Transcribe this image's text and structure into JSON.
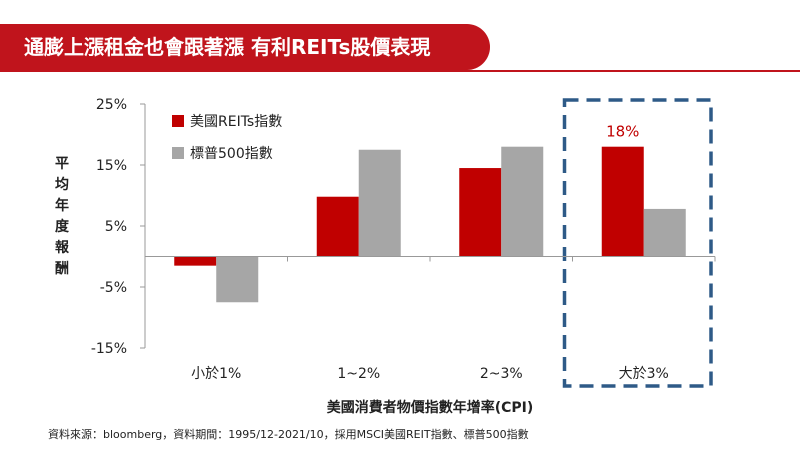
{
  "header": {
    "title": "通膨上漲租金也會跟著漲 有利REITs股價表現"
  },
  "footer": {
    "source": "資料來源：bloomberg，資料期間：1995/12-2021/10，採用MSCI美國REIT指數、標普500指數"
  },
  "colors": {
    "accent": "#c0141c",
    "reits": "#c00000",
    "sp500": "#a6a6a6",
    "highlight_box": "#2e5a87"
  },
  "chart_data": {
    "type": "bar",
    "xlabel": "美國消費者物價指數年增率(CPI)",
    "ylabel": "平均年度報酬",
    "categories": [
      "小於1%",
      "1~2%",
      "2~3%",
      "大於3%"
    ],
    "series": [
      {
        "name": "美國REITs指數",
        "values": [
          -1.5,
          9.8,
          14.5,
          18.0
        ]
      },
      {
        "name": "標普500指數",
        "values": [
          -7.5,
          17.5,
          18.0,
          7.8
        ]
      }
    ],
    "ylim": [
      -15,
      25
    ],
    "yticks": [
      25,
      15,
      5,
      -5,
      -15
    ],
    "ytick_labels": [
      "25%",
      "15%",
      "5%",
      "-5%",
      "-15%"
    ],
    "legend": "top-left",
    "grid": false,
    "annotations": [
      {
        "category": "大於3%",
        "series": "美國REITs指數",
        "text": "18%"
      }
    ],
    "highlight": {
      "category": "大於3%",
      "style": "dashed-box"
    }
  }
}
